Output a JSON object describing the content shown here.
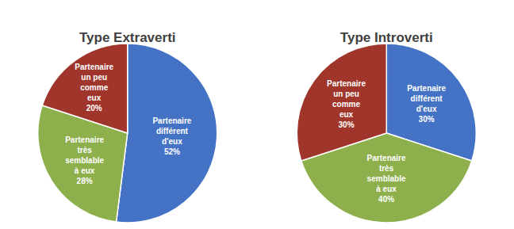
{
  "chart_data": [
    {
      "type": "pie",
      "title": "Type Extraverti",
      "categories": [
        "Partenaire\ndifférent\nd'eux",
        "Partenaire\ntrès\nsemblable\nà eux",
        "Partenaire\nun peu\ncomme\neux"
      ],
      "values": [
        52,
        28,
        20
      ],
      "value_labels": [
        "52%",
        "28%",
        "20%"
      ],
      "colors": [
        "#4472C4",
        "#8DB04D",
        "#A0362B"
      ],
      "data_labels": true
    },
    {
      "type": "pie",
      "title": "Type Introverti",
      "categories": [
        "Partenaire\ndifférent\nd'eux",
        "Partenaire\ntrès\nsemblable\nà eux",
        "Partenaire\nun peu\ncomme\neux"
      ],
      "values": [
        30,
        40,
        30
      ],
      "value_labels": [
        "30%",
        "40%",
        "30%"
      ],
      "colors": [
        "#4472C4",
        "#8DB04D",
        "#A0362B"
      ],
      "data_labels": true
    }
  ]
}
